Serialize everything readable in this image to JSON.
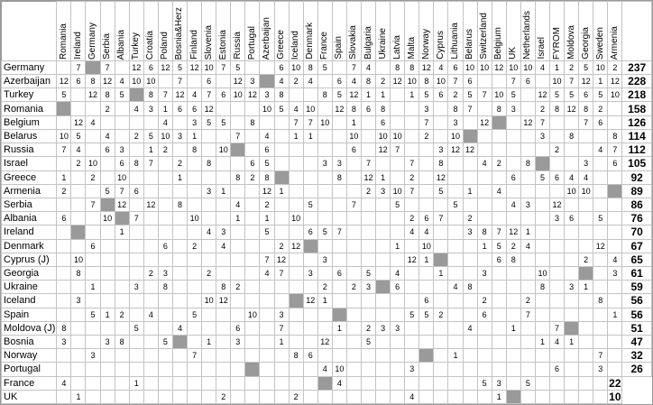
{
  "app": {
    "description_label": "Voting matrix table: rows are receiving countries with bold point totals, columns are voting countries, gray squares mark a country's own column"
  },
  "colors": {
    "self_cell": "#9a9a9a",
    "grid_line": "#c3c3c3",
    "outer_border": "#9a9a9a",
    "background": "#ffffff",
    "text": "#000000"
  },
  "chart_data": {
    "type": "table",
    "self_marker": "S",
    "columns": [
      "Romania",
      "Ireland",
      "Germany",
      "Serbia",
      "Albania",
      "Turkey",
      "Croatia",
      "Poland",
      "Bosnia&Herz",
      "Finland",
      "Slovenia",
      "Estonia",
      "Russia",
      "Portugal",
      "Azerbaijan",
      "Greece",
      "Iceland",
      "Denmark",
      "France",
      "Spain",
      "Slovakia",
      "Bulgaria",
      "Ukraine",
      "Latvia",
      "Malta",
      "Norway",
      "Cyprus",
      "Lithuania",
      "Belarus",
      "Switzerland",
      "Belgium",
      "UK",
      "Netherlands",
      "Israel",
      "FYROM",
      "Moldova",
      "Georgia",
      "Sweden",
      "Armenia"
    ],
    "rows": [
      "Germany",
      "Azerbaijan",
      "Turkey",
      "Romania",
      "Belgium",
      "Belarus",
      "Russia",
      "Israel",
      "Greece",
      "Armenia",
      "Serbia",
      "Albania",
      "Ireland",
      "Denmark",
      "Cyprus (J)",
      "Georgia",
      "Ukraine",
      "Iceland",
      "Spain",
      "Moldova (J)",
      "Bosnia",
      "Norway",
      "Portugal",
      "France",
      "UK"
    ],
    "totals": [
      237,
      228,
      218,
      158,
      126,
      114,
      112,
      105,
      92,
      89,
      86,
      76,
      70,
      67,
      65,
      61,
      59,
      56,
      56,
      51,
      47,
      32,
      26,
      22,
      10
    ],
    "matrix": [
      [
        "",
        7,
        "S",
        7,
        "",
        12,
        6,
        12,
        5,
        12,
        10,
        7,
        5,
        "",
        "",
        6,
        10,
        8,
        5,
        "",
        7,
        4,
        "",
        8,
        8,
        12,
        4,
        6,
        10,
        10,
        12,
        10,
        10,
        4,
        1,
        2,
        5,
        10,
        2
      ],
      [
        12,
        6,
        8,
        12,
        4,
        10,
        10,
        "",
        7,
        "",
        6,
        "",
        12,
        3,
        "S",
        4,
        2,
        4,
        "",
        6,
        4,
        8,
        2,
        12,
        10,
        8,
        10,
        7,
        6,
        "",
        "",
        7,
        6,
        "",
        10,
        7,
        12,
        1,
        12
      ],
      [
        5,
        "",
        12,
        8,
        5,
        "S",
        8,
        7,
        12,
        4,
        7,
        6,
        10,
        12,
        3,
        8,
        "",
        "",
        8,
        5,
        12,
        1,
        1,
        "",
        1,
        5,
        6,
        2,
        5,
        7,
        10,
        5,
        "",
        12,
        5,
        5,
        6,
        5,
        10
      ],
      [
        "S",
        "",
        "",
        2,
        "",
        4,
        3,
        1,
        6,
        6,
        12,
        "",
        "",
        "",
        10,
        5,
        4,
        10,
        "",
        12,
        8,
        6,
        8,
        "",
        "",
        3,
        "",
        8,
        7,
        "",
        8,
        3,
        "",
        2,
        8,
        12,
        8,
        2,
        ""
      ],
      [
        "",
        12,
        4,
        "",
        "",
        "",
        "",
        4,
        "",
        3,
        5,
        5,
        "",
        8,
        "",
        "",
        7,
        7,
        10,
        "",
        1,
        "",
        6,
        "",
        "",
        7,
        "",
        3,
        "",
        12,
        "S",
        "",
        12,
        7,
        "",
        "",
        7,
        6,
        ""
      ],
      [
        10,
        5,
        "",
        4,
        "",
        2,
        5,
        10,
        3,
        1,
        "",
        "",
        7,
        "",
        4,
        "",
        1,
        1,
        "",
        "",
        10,
        "",
        10,
        10,
        "",
        2,
        "",
        10,
        "S",
        "",
        "",
        "",
        "",
        3,
        "",
        8,
        "",
        "",
        8
      ],
      [
        7,
        4,
        "",
        6,
        3,
        "",
        1,
        2,
        "",
        8,
        "",
        10,
        "S",
        "",
        6,
        "",
        "",
        "",
        "",
        "",
        6,
        "",
        12,
        7,
        "",
        "",
        3,
        12,
        12,
        "",
        "",
        "",
        "",
        "",
        2,
        "",
        "",
        4,
        7
      ],
      [
        "",
        2,
        10,
        "",
        6,
        8,
        7,
        "",
        2,
        "",
        8,
        "",
        "",
        6,
        5,
        "",
        "",
        "",
        3,
        3,
        "",
        7,
        "",
        "",
        7,
        "",
        8,
        "",
        "",
        4,
        2,
        "",
        8,
        "S",
        "",
        "",
        3,
        "",
        6
      ],
      [
        1,
        "",
        2,
        "",
        10,
        "",
        "",
        "",
        1,
        "",
        "",
        "",
        8,
        2,
        8,
        "S",
        "",
        "",
        "",
        8,
        "",
        12,
        1,
        "",
        2,
        "",
        12,
        "",
        "",
        "",
        "",
        6,
        "",
        5,
        6,
        4,
        4,
        "",
        ""
      ],
      [
        2,
        "",
        "",
        5,
        7,
        6,
        "",
        "",
        "",
        "",
        3,
        1,
        "",
        "",
        12,
        1,
        "",
        "",
        "",
        "",
        "",
        2,
        3,
        10,
        7,
        "",
        5,
        "",
        1,
        "",
        4,
        "",
        "",
        "",
        "",
        10,
        10,
        "",
        "S"
      ],
      [
        "",
        "",
        7,
        "S",
        12,
        "",
        12,
        "",
        8,
        "",
        "",
        "",
        4,
        "",
        2,
        "",
        "",
        5,
        "",
        "",
        7,
        "",
        "",
        5,
        "",
        "",
        "",
        5,
        "",
        "",
        "",
        4,
        3,
        "",
        12,
        "",
        "",
        "",
        ""
      ],
      [
        6,
        "",
        "",
        10,
        "S",
        7,
        "",
        "",
        "",
        10,
        "",
        "",
        1,
        "",
        1,
        "",
        10,
        "",
        "",
        "",
        "",
        "",
        "",
        "",
        2,
        6,
        7,
        "",
        2,
        "",
        "",
        "",
        "",
        "",
        3,
        6,
        "",
        5,
        ""
      ],
      [
        "",
        "S",
        "",
        "",
        1,
        "",
        "",
        "",
        "",
        "",
        4,
        3,
        "",
        "",
        5,
        "",
        "",
        6,
        5,
        7,
        "",
        "",
        "",
        "",
        4,
        4,
        "",
        "",
        3,
        8,
        7,
        12,
        1,
        "",
        "",
        "",
        "",
        "",
        ""
      ],
      [
        "",
        "",
        6,
        "",
        "",
        "",
        "",
        6,
        "",
        2,
        "",
        4,
        "",
        "",
        "",
        2,
        12,
        "S",
        "",
        "",
        "",
        "",
        "",
        1,
        "",
        10,
        "",
        "",
        "",
        1,
        5,
        2,
        4,
        "",
        "",
        "",
        "",
        12,
        ""
      ],
      [
        "",
        10,
        "",
        "",
        "",
        "",
        "",
        "",
        "",
        "",
        "",
        "",
        "",
        "",
        7,
        12,
        "",
        "",
        3,
        "",
        "",
        "",
        "",
        "",
        12,
        1,
        "S",
        "",
        "",
        "",
        6,
        8,
        "",
        "",
        "",
        "",
        2,
        "",
        4
      ],
      [
        "",
        8,
        "",
        "",
        "",
        "",
        2,
        3,
        "",
        "",
        2,
        "",
        "",
        "",
        4,
        7,
        "",
        3,
        "",
        6,
        "",
        5,
        "",
        4,
        "",
        "",
        1,
        "",
        "",
        3,
        "",
        "",
        "",
        10,
        "",
        "",
        "S",
        "",
        3
      ],
      [
        "",
        "",
        1,
        "",
        "",
        3,
        "",
        8,
        "",
        "",
        "",
        8,
        2,
        "",
        "",
        "",
        "",
        "",
        2,
        "",
        2,
        3,
        "S",
        6,
        "",
        "",
        "",
        4,
        8,
        "",
        "",
        "",
        "",
        8,
        "",
        3,
        1,
        "",
        ""
      ],
      [
        "",
        3,
        "",
        "",
        "",
        "",
        "",
        "",
        "",
        "",
        10,
        12,
        "",
        "",
        "",
        "",
        "S",
        12,
        1,
        "",
        "",
        "",
        "",
        "",
        "",
        6,
        "",
        "",
        "",
        2,
        "",
        "",
        2,
        "",
        "",
        "",
        "",
        8,
        ""
      ],
      [
        "",
        "",
        5,
        1,
        2,
        "",
        4,
        "",
        "",
        5,
        "",
        "",
        "",
        10,
        "",
        3,
        "",
        "",
        "",
        "S",
        "",
        "",
        "",
        "",
        5,
        5,
        2,
        "",
        "",
        6,
        "",
        "",
        7,
        "",
        "",
        "",
        "",
        "",
        1
      ],
      [
        8,
        "",
        "",
        "",
        "",
        5,
        "",
        "",
        4,
        "",
        "",
        "",
        6,
        "",
        "",
        7,
        "",
        "",
        "",
        1,
        "",
        2,
        3,
        3,
        "",
        "",
        "",
        "",
        4,
        "",
        "",
        1,
        "",
        "",
        7,
        "S",
        "",
        "",
        ""
      ],
      [
        3,
        "",
        "",
        3,
        8,
        "",
        "",
        5,
        "S",
        "",
        1,
        "",
        3,
        "",
        "",
        1,
        "",
        "",
        12,
        "",
        "",
        5,
        "",
        "",
        "",
        "",
        "",
        "",
        "",
        "",
        "",
        "",
        "",
        1,
        4,
        1,
        "",
        "",
        ""
      ],
      [
        "",
        "",
        3,
        "",
        "",
        "",
        "",
        "",
        "",
        7,
        "",
        "",
        "",
        "",
        "",
        "",
        8,
        6,
        "",
        "",
        "",
        "",
        "",
        "",
        "",
        "S",
        "",
        1,
        "",
        "",
        "",
        "",
        "",
        "",
        "",
        "",
        "",
        7,
        ""
      ],
      [
        "",
        "",
        "",
        "",
        "",
        "",
        "",
        "",
        "",
        "",
        "",
        "",
        "",
        "S",
        "",
        "",
        "",
        "",
        4,
        10,
        "",
        "",
        "",
        "",
        3,
        "",
        "",
        "",
        "",
        "",
        "",
        "",
        "",
        "",
        6,
        "",
        "",
        3,
        ""
      ],
      [
        4,
        "",
        "",
        "",
        "",
        1,
        "",
        "",
        "",
        "",
        "",
        "",
        "",
        "",
        "",
        "",
        "",
        "",
        "S",
        4,
        "",
        "",
        "",
        "",
        "",
        "",
        "",
        "",
        "",
        5,
        3,
        "",
        5,
        "",
        "",
        "",
        "",
        ""
      ],
      [
        "",
        1,
        "",
        "",
        "",
        "",
        "",
        "",
        "",
        "",
        "",
        2,
        "",
        "",
        "",
        "",
        2,
        "",
        "",
        "",
        "",
        "",
        "",
        "",
        4,
        "",
        "",
        "",
        "",
        "",
        1,
        "S",
        "",
        "",
        "",
        "",
        "",
        ""
      ]
    ]
  }
}
